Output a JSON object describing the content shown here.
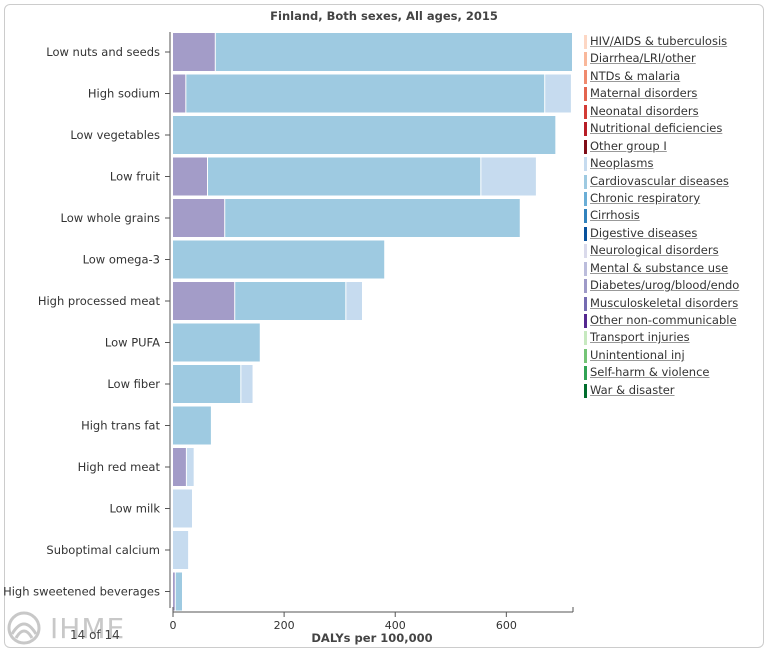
{
  "chart_data": {
    "type": "bar",
    "orientation": "horizontal",
    "stacked": true,
    "title": "Finland, Both sexes, All ages, 2015",
    "xlabel": "DALYs per 100,000",
    "ylabel": "",
    "xlim": [
      0,
      720
    ],
    "xticks": [
      0,
      200,
      400,
      600
    ],
    "grid": false,
    "legend_position": "right",
    "categories": [
      "Low nuts and seeds",
      "High sodium",
      "Low vegetables",
      "Low fruit",
      "Low whole grains",
      "Low omega-3",
      "High processed meat",
      "Low PUFA",
      "Low fiber",
      "High trans fat",
      "High red meat",
      "Low milk",
      "Suboptimal calcium",
      "High sweetened beverages"
    ],
    "series": [
      {
        "name": "Diabetes/urog/blood/endo",
        "color": "#a39cc8",
        "values": [
          77,
          24,
          0,
          63,
          94,
          0,
          112,
          0,
          0,
          0,
          25,
          0,
          0,
          5
        ]
      },
      {
        "name": "Cardiovascular diseases",
        "color": "#9ecae1",
        "values": [
          643,
          646,
          690,
          492,
          532,
          382,
          200,
          158,
          123,
          70,
          0,
          0,
          0,
          13
        ]
      },
      {
        "name": "Neoplasms",
        "color": "#c6dbef",
        "values": [
          0,
          48,
          0,
          100,
          0,
          0,
          30,
          0,
          22,
          0,
          14,
          36,
          29,
          0
        ]
      }
    ]
  },
  "legend": {
    "items": [
      {
        "label": "HIV/AIDS & tuberculosis",
        "color": "#fdd7c4"
      },
      {
        "label": "Diarrhea/LRI/other",
        "color": "#f9b89b"
      },
      {
        "label": "NTDs & malaria",
        "color": "#f08a6e"
      },
      {
        "label": "Maternal disorders",
        "color": "#e3644e"
      },
      {
        "label": "Neonatal disorders",
        "color": "#d33b35"
      },
      {
        "label": "Nutritional deficiencies",
        "color": "#b71d26"
      },
      {
        "label": "Other group I",
        "color": "#7f0d17"
      },
      {
        "label": "Neoplasms",
        "color": "#c6dbef"
      },
      {
        "label": "Cardiovascular diseases",
        "color": "#9ecae1"
      },
      {
        "label": "Chronic respiratory",
        "color": "#6baed6"
      },
      {
        "label": "Cirrhosis",
        "color": "#3182bd"
      },
      {
        "label": "Digestive diseases",
        "color": "#08519c"
      },
      {
        "label": "Neurological disorders",
        "color": "#dadaeb"
      },
      {
        "label": "Mental & substance use",
        "color": "#bcbddc"
      },
      {
        "label": "Diabetes/urog/blood/endo",
        "color": "#9e9ac8"
      },
      {
        "label": "Musculoskeletal disorders",
        "color": "#756bb1"
      },
      {
        "label": "Other non-communicable",
        "color": "#54278f"
      },
      {
        "label": "Transport injuries",
        "color": "#c7e9c0"
      },
      {
        "label": "Unintentional inj",
        "color": "#74c476"
      },
      {
        "label": "Self-harm & violence",
        "color": "#31a354"
      },
      {
        "label": "War & disaster",
        "color": "#006d2c"
      }
    ]
  },
  "footer": {
    "logo_text": "IHME",
    "page_label": "14 of 14"
  }
}
